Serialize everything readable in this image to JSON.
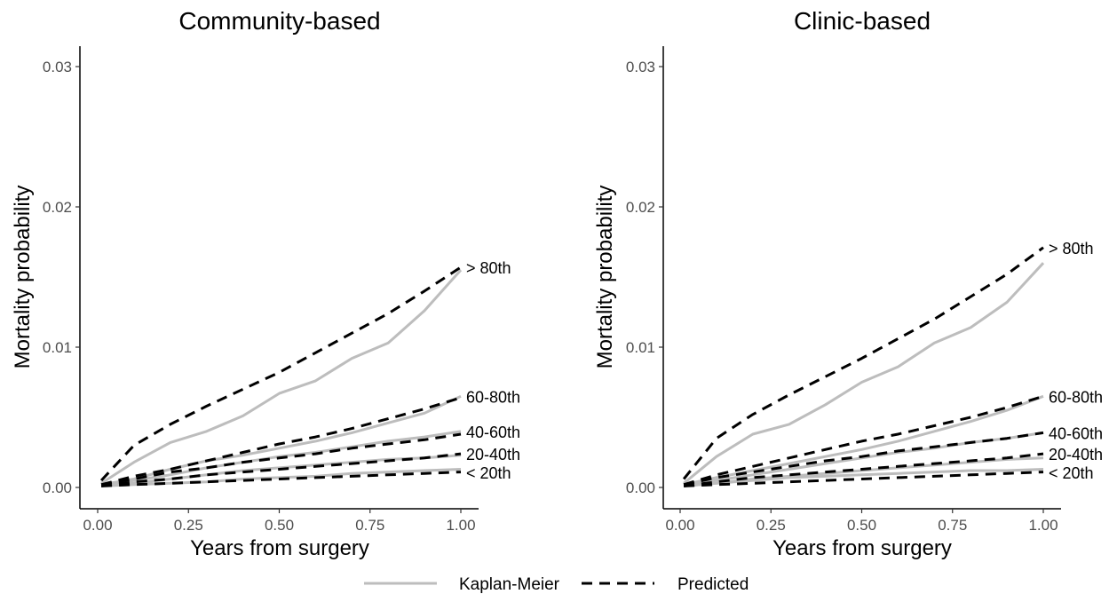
{
  "legend": {
    "entries": [
      {
        "label": "Kaplan-Meier",
        "style": "solid",
        "color": "#bdbdbd"
      },
      {
        "label": "Predicted",
        "style": "dashed",
        "color": "#000000"
      }
    ],
    "position": "bottom"
  },
  "chart_data": [
    {
      "type": "line",
      "title": "Community-based",
      "xlabel": "Years from surgery",
      "ylabel": "Mortality probability",
      "xlim": [
        0,
        1
      ],
      "ylim": [
        0,
        0.03
      ],
      "xticks": [
        "0.00",
        "0.25",
        "0.50",
        "0.75",
        "1.00"
      ],
      "yticks": [
        "0.00",
        "0.01",
        "0.02",
        "0.03"
      ],
      "grid": false,
      "x": [
        0.01,
        0.1,
        0.2,
        0.3,
        0.4,
        0.5,
        0.6,
        0.7,
        0.8,
        0.9,
        1.0
      ],
      "series": [
        {
          "group": "> 80th",
          "kind": "Predicted",
          "values": [
            0.0005,
            0.003,
            0.0045,
            0.0058,
            0.007,
            0.0082,
            0.0096,
            0.011,
            0.0124,
            0.014,
            0.0157
          ]
        },
        {
          "group": "> 80th",
          "kind": "Kaplan-Meier",
          "values": [
            0.0003,
            0.0018,
            0.0032,
            0.004,
            0.0051,
            0.0067,
            0.0076,
            0.0092,
            0.0103,
            0.0126,
            0.0155
          ]
        },
        {
          "group": "60-80th",
          "kind": "Predicted",
          "values": [
            0.0002,
            0.0008,
            0.0013,
            0.0019,
            0.0025,
            0.0031,
            0.0036,
            0.0042,
            0.0049,
            0.0056,
            0.0064
          ]
        },
        {
          "group": "60-80th",
          "kind": "Kaplan-Meier",
          "values": [
            0.0002,
            0.0006,
            0.0013,
            0.0019,
            0.0023,
            0.0028,
            0.0033,
            0.0039,
            0.0046,
            0.0053,
            0.0065
          ]
        },
        {
          "group": "40-60th",
          "kind": "Predicted",
          "values": [
            0.0002,
            0.0006,
            0.0011,
            0.0014,
            0.0018,
            0.0021,
            0.0024,
            0.0028,
            0.0031,
            0.0034,
            0.0038
          ]
        },
        {
          "group": "40-60th",
          "kind": "Kaplan-Meier",
          "values": [
            0.0001,
            0.0005,
            0.0009,
            0.0014,
            0.0018,
            0.0022,
            0.0025,
            0.0029,
            0.0033,
            0.0036,
            0.004
          ]
        },
        {
          "group": "20-40th",
          "kind": "Predicted",
          "values": [
            0.0001,
            0.0004,
            0.0006,
            0.0009,
            0.0011,
            0.0013,
            0.0015,
            0.0017,
            0.0019,
            0.0021,
            0.0024
          ]
        },
        {
          "group": "20-40th",
          "kind": "Kaplan-Meier",
          "values": [
            0.0001,
            0.0003,
            0.0006,
            0.0009,
            0.0012,
            0.0014,
            0.0016,
            0.0018,
            0.002,
            0.0021,
            0.0023
          ]
        },
        {
          "group": "< 20th",
          "kind": "Predicted",
          "values": [
            0.0001,
            0.0002,
            0.0003,
            0.0004,
            0.0005,
            0.0006,
            0.0007,
            0.0008,
            0.0009,
            0.001,
            0.0011
          ]
        },
        {
          "group": "< 20th",
          "kind": "Kaplan-Meier",
          "values": [
            0.0001,
            0.0002,
            0.0003,
            0.0004,
            0.0006,
            0.0007,
            0.0008,
            0.001,
            0.0011,
            0.0012,
            0.0013
          ]
        }
      ]
    },
    {
      "type": "line",
      "title": "Clinic-based",
      "xlabel": "Years from surgery",
      "ylabel": "Mortality probability",
      "xlim": [
        0,
        1
      ],
      "ylim": [
        0,
        0.03
      ],
      "xticks": [
        "0.00",
        "0.25",
        "0.50",
        "0.75",
        "1.00"
      ],
      "yticks": [
        "0.00",
        "0.01",
        "0.02",
        "0.03"
      ],
      "grid": false,
      "x": [
        0.01,
        0.1,
        0.2,
        0.3,
        0.4,
        0.5,
        0.6,
        0.7,
        0.8,
        0.9,
        1.0
      ],
      "series": [
        {
          "group": "> 80th",
          "kind": "Predicted",
          "values": [
            0.0006,
            0.0035,
            0.0052,
            0.0066,
            0.0079,
            0.0092,
            0.0106,
            0.012,
            0.0136,
            0.0152,
            0.0171
          ]
        },
        {
          "group": "> 80th",
          "kind": "Kaplan-Meier",
          "values": [
            0.0003,
            0.0022,
            0.0038,
            0.0045,
            0.0059,
            0.0075,
            0.0086,
            0.0103,
            0.0114,
            0.0132,
            0.016
          ]
        },
        {
          "group": "60-80th",
          "kind": "Predicted",
          "values": [
            0.0002,
            0.0009,
            0.0015,
            0.0021,
            0.0027,
            0.0033,
            0.0038,
            0.0044,
            0.005,
            0.0057,
            0.0065
          ]
        },
        {
          "group": "60-80th",
          "kind": "Kaplan-Meier",
          "values": [
            0.0002,
            0.0007,
            0.0012,
            0.0017,
            0.0022,
            0.0027,
            0.0033,
            0.004,
            0.0047,
            0.0055,
            0.0065
          ]
        },
        {
          "group": "40-60th",
          "kind": "Predicted",
          "values": [
            0.0002,
            0.0007,
            0.0011,
            0.0015,
            0.0019,
            0.0022,
            0.0026,
            0.0029,
            0.0032,
            0.0035,
            0.0039
          ]
        },
        {
          "group": "40-60th",
          "kind": "Kaplan-Meier",
          "values": [
            0.0001,
            0.0005,
            0.0009,
            0.0013,
            0.0017,
            0.0021,
            0.0025,
            0.0028,
            0.0032,
            0.0035,
            0.0039
          ]
        },
        {
          "group": "20-40th",
          "kind": "Predicted",
          "values": [
            0.0001,
            0.0004,
            0.0007,
            0.0009,
            0.0011,
            0.0013,
            0.0015,
            0.0017,
            0.0019,
            0.0021,
            0.0024
          ]
        },
        {
          "group": "20-40th",
          "kind": "Kaplan-Meier",
          "values": [
            0.0001,
            0.0003,
            0.0006,
            0.0008,
            0.001,
            0.0012,
            0.0014,
            0.0016,
            0.0018,
            0.002,
            0.0021
          ]
        },
        {
          "group": "< 20th",
          "kind": "Predicted",
          "values": [
            0.0001,
            0.0002,
            0.0003,
            0.0004,
            0.0005,
            0.0006,
            0.0007,
            0.0008,
            0.0009,
            0.001,
            0.0011
          ]
        },
        {
          "group": "< 20th",
          "kind": "Kaplan-Meier",
          "values": [
            0.0001,
            0.0003,
            0.0005,
            0.0007,
            0.0008,
            0.0009,
            0.001,
            0.0011,
            0.0012,
            0.0012,
            0.0013
          ]
        }
      ],
      "group_labels": [
        "> 80th",
        "60-80th",
        "40-60th",
        "20-40th",
        "< 20th"
      ]
    }
  ]
}
